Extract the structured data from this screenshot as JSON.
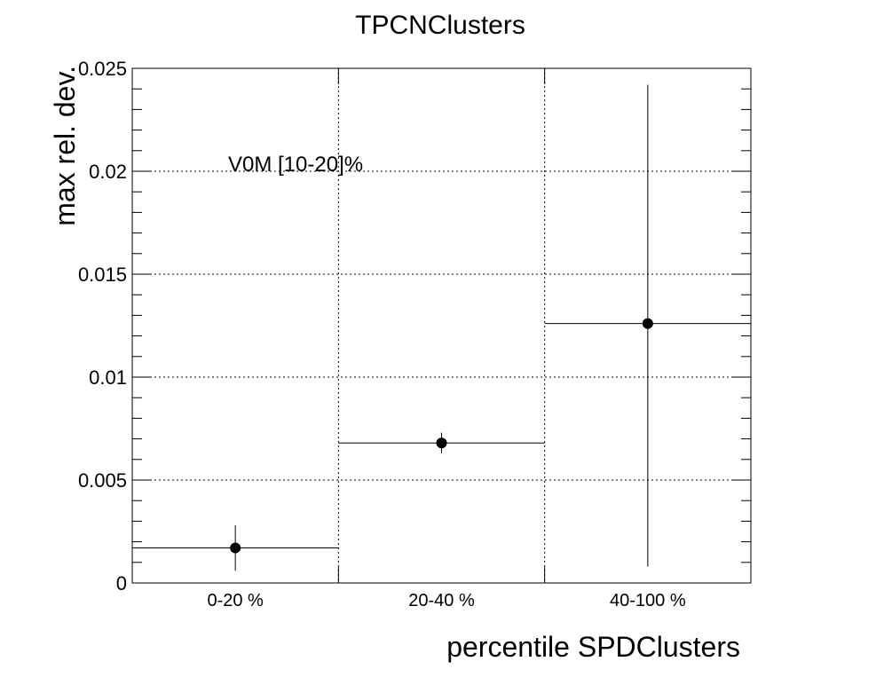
{
  "chart_data": {
    "type": "scatter",
    "title": "TPCNClusters",
    "xlabel": "percentile SPDClusters",
    "ylabel": "max rel. dev.",
    "annotation": "V0M [10-20]%",
    "categories": [
      "0-20 %",
      "20-40 %",
      "40-100 %"
    ],
    "ylim": [
      0,
      0.025
    ],
    "yticks": [
      0,
      0.005,
      0.01,
      0.015,
      0.02,
      0.025
    ],
    "ytick_labels": [
      "0",
      "0.005",
      "0.01",
      "0.015",
      "0.02",
      "0.025"
    ],
    "grid": true,
    "series": [
      {
        "values": [
          0.0017,
          0.0068,
          0.0126
        ],
        "err_low": [
          0.0011,
          0.0005,
          0.0118
        ],
        "err_high": [
          0.0011,
          0.0005,
          0.0116
        ]
      }
    ]
  }
}
